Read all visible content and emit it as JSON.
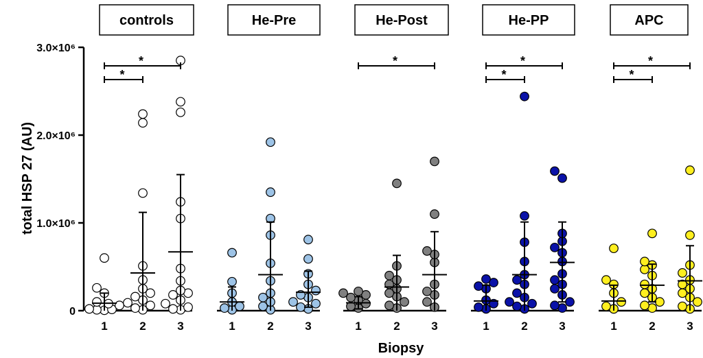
{
  "chart_data": {
    "type": "scatter",
    "ylabel": "total HSP 27 (AU)",
    "xlabel": "Biopsy",
    "ylim": [
      0,
      3000000
    ],
    "yticks": [
      {
        "value": 0,
        "label": "0"
      },
      {
        "value": 1000000,
        "label": "1.0×10⁶"
      },
      {
        "value": 2000000,
        "label": "2.0×10⁶"
      },
      {
        "value": 3000000,
        "label": "3.0×10⁶"
      }
    ],
    "categories": [
      "1",
      "2",
      "3"
    ],
    "panels": [
      {
        "title": "controls",
        "fill": "#ffffff",
        "groups": [
          {
            "x": "1",
            "values": [
              600000,
              260000,
              200000,
              100000,
              80000,
              60000,
              20000,
              15000,
              10000,
              5000
            ],
            "mean": 85000,
            "sd_low": 0,
            "sd_high": 200000
          },
          {
            "x": "2",
            "values": [
              2240000,
              2140000,
              1340000,
              510000,
              350000,
              250000,
              200000,
              160000,
              120000,
              90000,
              60000,
              30000,
              10000
            ],
            "mean": 430000,
            "sd_low": 0,
            "sd_high": 1120000
          },
          {
            "x": "3",
            "values": [
              2850000,
              2380000,
              2260000,
              1240000,
              1050000,
              480000,
              340000,
              230000,
              200000,
              180000,
              120000,
              80000,
              40000,
              20000,
              10000
            ],
            "mean": 670000,
            "sd_low": 0,
            "sd_high": 1550000
          }
        ],
        "significance": [
          {
            "from": "1",
            "to": "3",
            "label": "*"
          },
          {
            "from": "1",
            "to": "2",
            "label": "*"
          }
        ]
      },
      {
        "title": "He-Pre",
        "fill": "#9dc3e6",
        "groups": [
          {
            "x": "1",
            "values": [
              660000,
              330000,
              200000,
              100000,
              50000,
              30000,
              10000
            ],
            "mean": 100000,
            "sd_low": 0,
            "sd_high": 270000
          },
          {
            "x": "2",
            "values": [
              1920000,
              1350000,
              1050000,
              860000,
              540000,
              340000,
              200000,
              150000,
              100000,
              50000,
              10000
            ],
            "mean": 410000,
            "sd_low": 0,
            "sd_high": 1010000
          },
          {
            "x": "3",
            "values": [
              810000,
              590000,
              420000,
              300000,
              230000,
              180000,
              150000,
              100000,
              80000,
              40000,
              20000
            ],
            "mean": 210000,
            "sd_low": 40000,
            "sd_high": 450000
          }
        ],
        "significance": []
      },
      {
        "title": "He-Post",
        "fill": "#808080",
        "groups": [
          {
            "x": "1",
            "values": [
              220000,
              200000,
              180000,
              150000,
              120000,
              80000,
              50000,
              30000
            ],
            "mean": 90000,
            "sd_low": 20000,
            "sd_high": 160000
          },
          {
            "x": "2",
            "values": [
              1450000,
              510000,
              400000,
              350000,
              300000,
              250000,
              200000,
              160000,
              100000,
              60000,
              30000
            ],
            "mean": 270000,
            "sd_low": 0,
            "sd_high": 630000
          },
          {
            "x": "3",
            "values": [
              1700000,
              1100000,
              680000,
              640000,
              550000,
              300000,
              220000,
              180000,
              100000,
              40000
            ],
            "mean": 410000,
            "sd_low": 0,
            "sd_high": 900000
          }
        ],
        "significance": [
          {
            "from": "1",
            "to": "3",
            "label": "*"
          }
        ]
      },
      {
        "title": "He-PP",
        "fill": "#0a12a8",
        "groups": [
          {
            "x": "1",
            "values": [
              360000,
              320000,
              280000,
              250000,
              120000,
              80000,
              40000,
              20000
            ],
            "mean": 110000,
            "sd_low": 0,
            "sd_high": 290000
          },
          {
            "x": "2",
            "values": [
              2440000,
              1080000,
              780000,
              560000,
              410000,
              350000,
              300000,
              200000,
              150000,
              100000,
              80000,
              50000,
              20000
            ],
            "mean": 410000,
            "sd_low": 0,
            "sd_high": 1010000
          },
          {
            "x": "3",
            "values": [
              1590000,
              1510000,
              880000,
              790000,
              720000,
              660000,
              560000,
              420000,
              350000,
              300000,
              250000,
              180000,
              100000,
              60000,
              30000
            ],
            "mean": 550000,
            "sd_low": 100000,
            "sd_high": 1010000
          }
        ],
        "significance": [
          {
            "from": "1",
            "to": "3",
            "label": "*"
          },
          {
            "from": "1",
            "to": "2",
            "label": "*"
          }
        ]
      },
      {
        "title": "APC",
        "fill": "#ffef1f",
        "groups": [
          {
            "x": "1",
            "values": [
              710000,
              350000,
              300000,
              200000,
              100000,
              50000,
              20000
            ],
            "mean": 110000,
            "sd_low": 0,
            "sd_high": 290000
          },
          {
            "x": "2",
            "values": [
              880000,
              560000,
              520000,
              470000,
              400000,
              300000,
              250000,
              200000,
              150000,
              100000,
              60000,
              30000
            ],
            "mean": 290000,
            "sd_low": 100000,
            "sd_high": 530000
          },
          {
            "x": "3",
            "values": [
              1600000,
              860000,
              520000,
              430000,
              350000,
              300000,
              250000,
              200000,
              150000,
              100000,
              50000,
              20000
            ],
            "mean": 340000,
            "sd_low": 0,
            "sd_high": 740000
          }
        ],
        "significance": [
          {
            "from": "1",
            "to": "3",
            "label": "*"
          },
          {
            "from": "1",
            "to": "2",
            "label": "*"
          }
        ]
      }
    ]
  }
}
